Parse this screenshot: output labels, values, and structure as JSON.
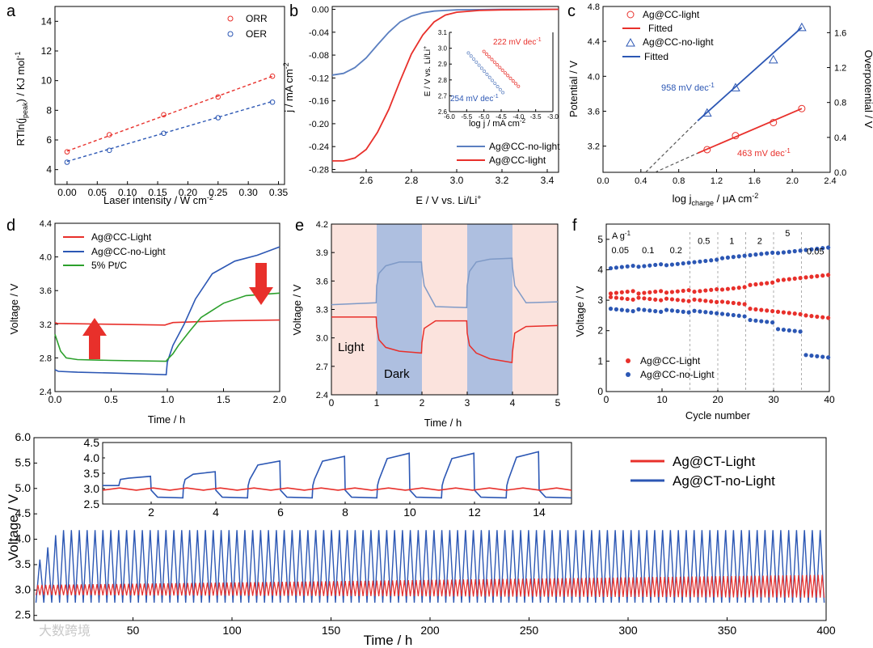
{
  "chart_data": [
    {
      "id": "a",
      "type": "scatter",
      "panel_label": "a",
      "xlabel": "Laser intensity / W cm",
      "xlabel_sup": "-2",
      "ylabel_parts": [
        "RTln(j",
        "peak",
        ") / KJ mol",
        "-1"
      ],
      "xlim": [
        -0.02,
        0.36
      ],
      "ylim": [
        3,
        15
      ],
      "xticks": [
        "0.00",
        "0.05",
        "0.10",
        "0.15",
        "0.20",
        "0.25",
        "0.30",
        "0.35"
      ],
      "yticks": [
        "4",
        "6",
        "8",
        "10",
        "12",
        "14"
      ],
      "legend_position": "top-right",
      "series": [
        {
          "name": "ORR",
          "color": "#e8302b",
          "x": [
            0,
            0.07,
            0.16,
            0.25,
            0.34
          ],
          "y": [
            5.2,
            6.35,
            7.7,
            8.9,
            10.3
          ],
          "fit": [
            [
              0,
              5.25
            ],
            [
              0.34,
              10.3
            ]
          ]
        },
        {
          "name": "OER",
          "color": "#2c57b4",
          "x": [
            0,
            0.07,
            0.16,
            0.25,
            0.34
          ],
          "y": [
            4.5,
            5.3,
            6.45,
            7.5,
            8.55
          ],
          "fit": [
            [
              0,
              4.55
            ],
            [
              0.34,
              8.6
            ]
          ]
        }
      ]
    },
    {
      "id": "b",
      "type": "line",
      "panel_label": "b",
      "xlabel": "E / V vs. Li/Li",
      "xlabel_sup": "+",
      "ylabel": "j / mA cm",
      "ylabel_sup": "-2",
      "xlim": [
        2.45,
        3.45
      ],
      "ylim": [
        -0.285,
        0.005
      ],
      "xticks": [
        "2.6",
        "2.8",
        "3.0",
        "3.2",
        "3.4"
      ],
      "yticks": [
        "0.00",
        "-0.04",
        "-0.08",
        "-0.12",
        "-0.16",
        "-0.20",
        "-0.24",
        "-0.28"
      ],
      "series": [
        {
          "name": "Ag@CC-no-light",
          "color": "#5b7fc0",
          "x": [
            2.45,
            2.5,
            2.55,
            2.6,
            2.65,
            2.7,
            2.75,
            2.8,
            2.85,
            2.9,
            2.95,
            3.0,
            3.1,
            3.2,
            3.45
          ],
          "y": [
            -0.115,
            -0.112,
            -0.102,
            -0.085,
            -0.062,
            -0.04,
            -0.022,
            -0.012,
            -0.006,
            -0.003,
            -0.002,
            -0.001,
            -0.0005,
            0,
            0
          ]
        },
        {
          "name": "Ag@CC-light",
          "color": "#e8302b",
          "x": [
            2.45,
            2.5,
            2.55,
            2.6,
            2.65,
            2.7,
            2.75,
            2.8,
            2.85,
            2.9,
            2.95,
            3.0,
            3.1,
            3.2,
            3.45
          ],
          "y": [
            -0.265,
            -0.265,
            -0.26,
            -0.245,
            -0.215,
            -0.175,
            -0.125,
            -0.078,
            -0.045,
            -0.022,
            -0.01,
            -0.005,
            -0.002,
            -0.001,
            0
          ]
        }
      ],
      "inset": {
        "xlabel": "log j / mA cm",
        "xlabel_sup": "-2",
        "ylabel": "E / V vs. Li/Li",
        "ylabel_sup": "+",
        "xlim": [
          -6.0,
          -3.0
        ],
        "ylim": [
          2.6,
          3.1
        ],
        "xticks": [
          "-6.0",
          "-5.5",
          "-5.0",
          "-4.5",
          "-4.0",
          "-3.5",
          "-3.0"
        ],
        "yticks": [
          "2.6",
          "2.7",
          "2.8",
          "2.9",
          "3.0",
          "3.1"
        ],
        "annotations": [
          {
            "text": "222 mV dec",
            "sup": "-1",
            "color": "#e8302b"
          },
          {
            "text": "254 mV dec",
            "sup": "-1",
            "color": "#2c57b4"
          }
        ],
        "series": [
          {
            "color": "#e8302b",
            "x": [
              -5.0,
              -4.0
            ],
            "y": [
              2.98,
              2.76
            ]
          },
          {
            "color": "#5b7fc0",
            "x": [
              -5.45,
              -4.45
            ],
            "y": [
              2.97,
              2.72
            ]
          }
        ]
      }
    },
    {
      "id": "c",
      "type": "scatter",
      "panel_label": "c",
      "xlabel_parts": [
        "log j",
        "charge",
        " / μA cm",
        "-2"
      ],
      "ylabel": "Potential / V",
      "y2label": "Overpotential / V",
      "xlim": [
        0.0,
        2.4
      ],
      "ylim": [
        2.9,
        4.8
      ],
      "y2lim": [
        0,
        1.9
      ],
      "xticks": [
        "0.0",
        "0.4",
        "0.8",
        "1.2",
        "1.6",
        "2.0",
        "2.4"
      ],
      "yticks": [
        "3.2",
        "3.6",
        "4.0",
        "4.4",
        "4.8"
      ],
      "y2ticks": [
        "0.0",
        "0.4",
        "0.8",
        "1.2",
        "1.6"
      ],
      "annotations": [
        {
          "text": "958 mV dec",
          "sup": "-1",
          "color": "#2c57b4"
        },
        {
          "text": "463 mV dec",
          "sup": "-1",
          "color": "#e8302b"
        }
      ],
      "legend": [
        "Ag@CC-light",
        "Fitted",
        "Ag@CC-no-light",
        "Fitted"
      ],
      "series": [
        {
          "name": "Ag@CC-light",
          "color": "#e8302b",
          "marker": "circle",
          "x": [
            1.1,
            1.4,
            1.8,
            2.1
          ],
          "y": [
            3.16,
            3.32,
            3.47,
            3.63
          ]
        },
        {
          "name": "Ag@CC-no-light",
          "color": "#2c57b4",
          "marker": "triangle",
          "x": [
            1.1,
            1.4,
            1.8,
            2.1
          ],
          "y": [
            3.58,
            3.87,
            4.19,
            4.56
          ]
        }
      ],
      "fits": [
        {
          "color": "#e8302b",
          "solid": [
            [
              1.0,
              3.12
            ],
            [
              2.1,
              3.63
            ]
          ],
          "dashed": [
            [
              0.55,
              2.9
            ],
            [
              1.0,
              3.12
            ]
          ]
        },
        {
          "color": "#2c57b4",
          "solid": [
            [
              1.0,
              3.49
            ],
            [
              2.1,
              4.56
            ]
          ],
          "dashed": [
            [
              0.45,
              2.9
            ],
            [
              1.0,
              3.49
            ]
          ]
        }
      ]
    },
    {
      "id": "d",
      "type": "line",
      "panel_label": "d",
      "xlabel": "Time / h",
      "ylabel": "Voltage / V",
      "xlim": [
        0,
        2.0
      ],
      "ylim": [
        2.4,
        4.4
      ],
      "xticks": [
        "0.0",
        "0.5",
        "1.0",
        "1.5",
        "2.0"
      ],
      "yticks": [
        "2.4",
        "2.8",
        "3.2",
        "3.6",
        "4.0",
        "4.4"
      ],
      "series": [
        {
          "name": "Ag@CC-Light",
          "color": "#e8302b",
          "x": [
            0,
            0.02,
            0.5,
            0.98,
            1.0,
            1.05,
            1.5,
            2.0
          ],
          "y": [
            3.22,
            3.21,
            3.2,
            3.19,
            3.2,
            3.22,
            3.24,
            3.25
          ]
        },
        {
          "name": "Ag@CC-no-Light",
          "color": "#2c57b4",
          "x": [
            0,
            0.03,
            0.2,
            0.5,
            0.99,
            1.0,
            1.05,
            1.15,
            1.25,
            1.4,
            1.6,
            1.8,
            2.0
          ],
          "y": [
            2.66,
            2.64,
            2.63,
            2.62,
            2.6,
            2.75,
            2.95,
            3.2,
            3.5,
            3.8,
            3.95,
            4.02,
            4.12
          ]
        },
        {
          "name": "5% Pt/C",
          "color": "#2ca02c",
          "x": [
            0,
            0.02,
            0.05,
            0.1,
            0.2,
            0.5,
            0.99,
            1.0,
            1.05,
            1.1,
            1.2,
            1.3,
            1.5,
            1.7,
            2.0
          ],
          "y": [
            3.08,
            3.0,
            2.88,
            2.8,
            2.78,
            2.77,
            2.76,
            2.78,
            2.85,
            2.95,
            3.12,
            3.28,
            3.45,
            3.54,
            3.57
          ]
        }
      ]
    },
    {
      "id": "e",
      "type": "line",
      "panel_label": "e",
      "xlabel": "Time / h",
      "ylabel": "Voltage / V",
      "xlim": [
        0,
        5
      ],
      "ylim": [
        2.4,
        4.2
      ],
      "xticks": [
        "0",
        "1",
        "2",
        "3",
        "4",
        "5"
      ],
      "yticks": [
        "2.4",
        "2.7",
        "3.0",
        "3.3",
        "3.6",
        "3.9",
        "4.2"
      ],
      "annotations": [
        "Light",
        "Dark"
      ],
      "regions": [
        {
          "from": 0,
          "to": 1,
          "kind": "light"
        },
        {
          "from": 1,
          "to": 2,
          "kind": "dark"
        },
        {
          "from": 2,
          "to": 3,
          "kind": "light"
        },
        {
          "from": 3,
          "to": 4,
          "kind": "dark"
        },
        {
          "from": 4,
          "to": 5,
          "kind": "light"
        }
      ],
      "series": [
        {
          "color": "#7f9ac7",
          "x": [
            0,
            0.99,
            1.0,
            1.05,
            1.2,
            1.5,
            1.99,
            2.0,
            2.05,
            2.3,
            2.99,
            3.0,
            3.05,
            3.2,
            3.5,
            3.99,
            4.0,
            4.05,
            4.3,
            5.0
          ],
          "y": [
            3.35,
            3.37,
            3.55,
            3.68,
            3.76,
            3.8,
            3.8,
            3.72,
            3.55,
            3.33,
            3.32,
            3.55,
            3.7,
            3.8,
            3.83,
            3.84,
            3.75,
            3.55,
            3.37,
            3.38
          ]
        },
        {
          "color": "#e8302b",
          "x": [
            0,
            0.99,
            1.0,
            1.05,
            1.2,
            1.5,
            1.99,
            2.0,
            2.05,
            2.3,
            2.99,
            3.0,
            3.05,
            3.2,
            3.5,
            3.99,
            4.0,
            4.05,
            4.3,
            5.0
          ],
          "y": [
            3.22,
            3.22,
            3.12,
            2.98,
            2.9,
            2.86,
            2.84,
            2.95,
            3.1,
            3.18,
            3.18,
            3.05,
            2.92,
            2.84,
            2.78,
            2.74,
            2.85,
            3.05,
            3.12,
            3.13
          ]
        }
      ]
    },
    {
      "id": "f",
      "type": "scatter",
      "panel_label": "f",
      "xlabel": "Cycle number",
      "ylabel": "Voltage / V",
      "xlim": [
        0,
        40
      ],
      "ylim": [
        0,
        5.5
      ],
      "xticks": [
        "0",
        "10",
        "20",
        "30",
        "40"
      ],
      "yticks": [
        "0",
        "1",
        "2",
        "3",
        "4",
        "5"
      ],
      "unit_label": "A g",
      "unit_sup": "-1",
      "rate_labels": [
        "0.05",
        "0.1",
        "0.2",
        "0.5",
        "1",
        "2",
        "5",
        "0.05"
      ],
      "rate_boundaries": [
        5,
        10,
        15,
        20,
        25,
        30,
        35
      ],
      "series": [
        {
          "name": "Ag@CC-Light",
          "color": "#e8302b",
          "charge": [
            3.22,
            3.22,
            3.25,
            3.28,
            3.35,
            3.5,
            3.65,
            3.75,
            3.22
          ],
          "discharge": [
            3.1,
            3.08,
            3.05,
            3.02,
            2.95,
            2.72,
            2.62,
            2.5,
            3.1
          ]
        },
        {
          "name": "Ag@CC-no-Light",
          "color": "#2c57b4",
          "charge": [
            4.05,
            4.1,
            4.15,
            4.25,
            4.38,
            4.48,
            4.55,
            4.65,
            4.05
          ],
          "discharge": [
            2.72,
            2.7,
            2.68,
            2.65,
            2.55,
            2.35,
            2.05,
            1.2,
            2.72
          ]
        }
      ]
    },
    {
      "id": "g",
      "type": "line",
      "xlabel": "Time / h",
      "ylabel": "Voltage / V",
      "xlim": [
        0,
        400
      ],
      "ylim": [
        2.4,
        6.0
      ],
      "xticks": [
        "50",
        "100",
        "150",
        "200",
        "250",
        "300",
        "350",
        "400"
      ],
      "yticks": [
        "2.5",
        "3.0",
        "3.5",
        "4.0",
        "4.5",
        "5.0",
        "5.5",
        "6.0"
      ],
      "series": [
        {
          "name": "Ag@CT-Light",
          "color": "#e8302b",
          "band_start": [
            2.9,
            3.1
          ],
          "band_end": [
            2.85,
            3.3
          ]
        },
        {
          "name": "Ag@CT-no-Light",
          "color": "#2c57b4",
          "band": [
            2.7,
            4.2
          ],
          "cycles": 200
        }
      ],
      "inset": {
        "xlim": [
          0.5,
          15
        ],
        "ylim": [
          2.5,
          4.5
        ],
        "xticks": [
          "2",
          "4",
          "6",
          "8",
          "10",
          "12",
          "14"
        ],
        "yticks": [
          "2.5",
          "3.0",
          "3.5",
          "4.0",
          "4.5"
        ],
        "blue_peaks": [
          3.4,
          3.55,
          3.9,
          4.05,
          4.15,
          4.15,
          4.2
        ]
      }
    }
  ],
  "watermark": "大数跨境"
}
